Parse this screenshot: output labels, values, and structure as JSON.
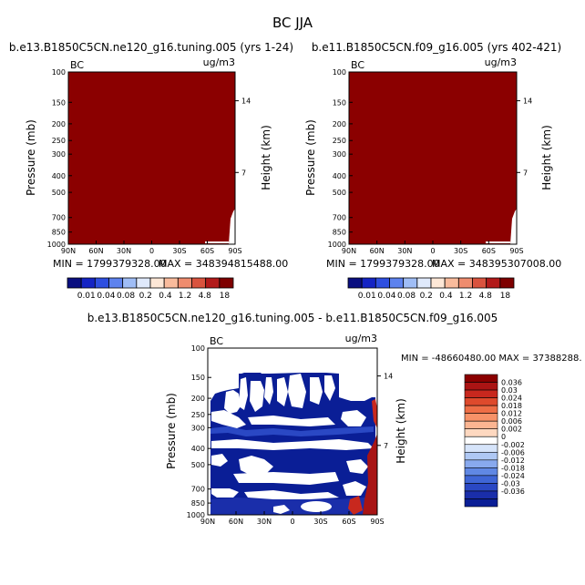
{
  "page": {
    "title": "BC JJA",
    "panel_top_left_title": "b.e13.B1850C5CN.ne120_g16.tuning.005 (yrs 1-24)",
    "panel_top_right_title": "b.e11.B1850C5CN.f09_g16.005 (yrs 402-421)",
    "panel_bottom_title": "b.e13.B1850C5CN.ne120_g16.tuning.005 - b.e11.B1850C5CN.f09_g16.005",
    "variable_label": "BC",
    "units_label": "ug/m3"
  },
  "colors": {
    "saturated_fill": "#8b0000",
    "diff_blue_dark": "#0a1e96",
    "diff_red_dark": "#a81414"
  },
  "chart_data": [
    {
      "type": "heatmap",
      "id": "top-left",
      "title": "b.e13.B1850C5CN.ne120_g16.tuning.005 (yrs 1-24)",
      "ylabel": "Pressure (mb)",
      "ylabel_right": "Height (km)",
      "x_tick_labels": [
        "90N",
        "60N",
        "30N",
        "0",
        "30S",
        "60S",
        "90S"
      ],
      "x_values": [
        90,
        60,
        30,
        0,
        -30,
        -60,
        -90
      ],
      "y_tick_labels": [
        "100",
        "150",
        "200",
        "250",
        "300",
        "400",
        "500",
        "700",
        "850",
        "1000"
      ],
      "y_values": [
        100,
        150,
        200,
        250,
        300,
        400,
        500,
        700,
        850,
        1000
      ],
      "ylim": [
        100,
        1000
      ],
      "height_tick_labels": [
        "14",
        "7"
      ],
      "height_values": [
        14,
        7
      ],
      "min_label": "MIN = 1799379328.00",
      "max_label": "MAX = 348394815488.00",
      "field": "uniform, above top color level (18) everywhere",
      "colorbar_levels": [
        "0.01",
        "0.04",
        "0.08",
        "0.2",
        "0.4",
        "1.2",
        "4.8",
        "18"
      ],
      "colorbar_colors": [
        "#0a0f80",
        "#1424c4",
        "#2e4fe0",
        "#5d82ee",
        "#9fbdf6",
        "#dfe9fb",
        "#fde7d6",
        "#f9bb9c",
        "#ee8c6e",
        "#d9533e",
        "#b21a1a",
        "#7e0000"
      ]
    },
    {
      "type": "heatmap",
      "id": "top-right",
      "title": "b.e11.B1850C5CN.f09_g16.005 (yrs 402-421)",
      "ylabel": "Pressure (mb)",
      "ylabel_right": "Height (km)",
      "x_tick_labels": [
        "90N",
        "60N",
        "30N",
        "0",
        "30S",
        "60S",
        "90S"
      ],
      "x_values": [
        90,
        60,
        30,
        0,
        -30,
        -60,
        -90
      ],
      "y_tick_labels": [
        "100",
        "150",
        "200",
        "250",
        "300",
        "400",
        "500",
        "700",
        "850",
        "1000"
      ],
      "y_values": [
        100,
        150,
        200,
        250,
        300,
        400,
        500,
        700,
        850,
        1000
      ],
      "ylim": [
        100,
        1000
      ],
      "height_tick_labels": [
        "14",
        "7"
      ],
      "height_values": [
        14,
        7
      ],
      "min_label": "MIN = 1799379328.00",
      "max_label": "MAX = 348395307008.00",
      "field": "uniform, above top color level (18) everywhere",
      "colorbar_levels": [
        "0.01",
        "0.04",
        "0.08",
        "0.2",
        "0.4",
        "1.2",
        "4.8",
        "18"
      ],
      "colorbar_colors": [
        "#0a0f80",
        "#1424c4",
        "#2e4fe0",
        "#5d82ee",
        "#9fbdf6",
        "#dfe9fb",
        "#fde7d6",
        "#f9bb9c",
        "#ee8c6e",
        "#d9533e",
        "#b21a1a",
        "#7e0000"
      ]
    },
    {
      "type": "heatmap",
      "id": "difference",
      "title": "b.e13.B1850C5CN.ne120_g16.tuning.005 - b.e11.B1850C5CN.f09_g16.005",
      "ylabel": "Pressure (mb)",
      "ylabel_right": "Height (km)",
      "x_tick_labels": [
        "90N",
        "60N",
        "30N",
        "0",
        "30S",
        "60S",
        "90S"
      ],
      "x_values": [
        90,
        60,
        30,
        0,
        -30,
        -60,
        -90
      ],
      "y_tick_labels": [
        "100",
        "150",
        "200",
        "250",
        "300",
        "400",
        "500",
        "700",
        "850",
        "1000"
      ],
      "y_values": [
        100,
        150,
        200,
        250,
        300,
        400,
        500,
        700,
        850,
        1000
      ],
      "ylim": [
        100,
        1000
      ],
      "height_tick_labels": [
        "14",
        "7"
      ],
      "height_values": [
        14,
        7
      ],
      "minmax_label": "MIN = -48660480.00   MAX = 37388288.",
      "field": "mostly below -0.036 (dark blue) from 150 to 1000 mb with white bands near zero; positive (red) values near 90S",
      "colorbar_levels": [
        "0.036",
        "0.03",
        "0.024",
        "0.018",
        "0.012",
        "0.006",
        "0.002",
        "0",
        "-0.002",
        "-0.006",
        "-0.012",
        "-0.018",
        "-0.024",
        "-0.03",
        "-0.036"
      ],
      "colorbar_colors": [
        "#8b0000",
        "#ab1414",
        "#c8281e",
        "#de4a2c",
        "#ee6e46",
        "#f79268",
        "#fbb592",
        "#fdd8c0",
        "#ffffff",
        "#d6e4fa",
        "#afc8f4",
        "#88a9ee",
        "#6088e4",
        "#3f66d6",
        "#2a48c4",
        "#1a2eaa",
        "#0a1e96"
      ]
    }
  ]
}
